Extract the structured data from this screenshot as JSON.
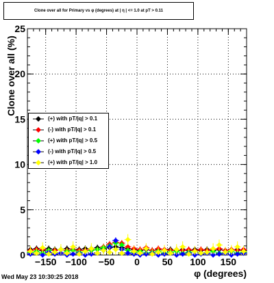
{
  "title": "Clone  over all for Primary vs φ (degrees) at | η | <= 1.0 at pT > 0.11",
  "timestamp": "Wed May 23 10:30:25 2018",
  "chart_data": {
    "type": "scatter",
    "title": "Clone  over all for Primary vs φ (degrees) at | η | <= 1.0 at pT > 0.11",
    "xlabel": "φ (degrees)",
    "ylabel": "Clone  over all (%)",
    "xlim": [
      -180,
      180
    ],
    "ylim": [
      0,
      25
    ],
    "xticks": [
      -150,
      -100,
      -50,
      0,
      50,
      100,
      150
    ],
    "xtick_labels": [
      "−150",
      "−100",
      "−50",
      "0",
      "50",
      "100",
      "150"
    ],
    "yticks": [
      0,
      5,
      10,
      15,
      20,
      25
    ],
    "grid": true,
    "legend_position": "left",
    "x": [
      -175,
      -165,
      -155,
      -145,
      -135,
      -125,
      -115,
      -105,
      -95,
      -85,
      -75,
      -65,
      -55,
      -45,
      -35,
      -25,
      -15,
      -5,
      5,
      15,
      25,
      35,
      45,
      55,
      65,
      75,
      85,
      95,
      105,
      115,
      125,
      135,
      145,
      155,
      165,
      175
    ],
    "series": [
      {
        "name": "(+) with pT/|q| > 0.1",
        "color": "#000000",
        "values": [
          0.6,
          0.7,
          0.5,
          0.7,
          0.6,
          0.6,
          0.7,
          0.6,
          0.6,
          0.7,
          0.7,
          0.8,
          0.7,
          0.8,
          0.9,
          0.8,
          0.7,
          0.6,
          0.5,
          0.6,
          0.5,
          0.6,
          0.5,
          0.6,
          0.5,
          0.6,
          0.5,
          0.6,
          0.5,
          0.6,
          0.5,
          0.6,
          0.5,
          0.5,
          0.6,
          0.5
        ]
      },
      {
        "name": "(-) with pT/|q| > 0.1",
        "color": "#ff0000",
        "values": [
          0.5,
          0.6,
          0.6,
          0.5,
          0.5,
          0.6,
          0.5,
          0.6,
          0.5,
          0.5,
          0.6,
          0.6,
          0.9,
          1.2,
          1.4,
          1.3,
          0.9,
          0.7,
          0.6,
          0.8,
          0.5,
          0.7,
          0.6,
          0.5,
          0.6,
          0.5,
          0.6,
          0.5,
          0.6,
          0.5,
          0.6,
          0.7,
          0.5,
          0.6,
          0.5,
          0.6
        ]
      },
      {
        "name": "(+) with pT/|q| > 0.5",
        "color": "#00ff00",
        "values": [
          0.3,
          0.4,
          0.2,
          0.5,
          0.3,
          0.6,
          0.4,
          0.5,
          0.3,
          0.4,
          0.5,
          0.6,
          0.8,
          1.0,
          1.3,
          1.1,
          0.5,
          0.3,
          0.4,
          0.2,
          0.3,
          0.4,
          0.2,
          0.3,
          0.4,
          0.2,
          0.3,
          0.4,
          0.2,
          0.3,
          0.4,
          0.2,
          0.3,
          0.4,
          0.2,
          0.3
        ]
      },
      {
        "name": "(-) with pT/|q| > 0.5",
        "color": "#0000ff",
        "values": [
          0.1,
          0.2,
          0.0,
          0.3,
          0.1,
          0.2,
          0.0,
          0.1,
          0.2,
          0.0,
          0.1,
          0.2,
          0.5,
          0.9,
          1.6,
          0.6,
          0.2,
          0.1,
          0.0,
          0.1,
          0.2,
          0.0,
          0.1,
          0.2,
          0.0,
          0.1,
          0.2,
          0.0,
          0.1,
          0.2,
          0.0,
          0.1,
          0.2,
          0.0,
          0.1,
          0.2
        ]
      },
      {
        "name": "(+) with pT/|q| > 1.0",
        "color": "#ffff00",
        "values": [
          0.4,
          0.2,
          0.8,
          0.1,
          0.3,
          0.6,
          0.2,
          0.9,
          0.1,
          0.4,
          0.7,
          0.2,
          0.5,
          0.3,
          0.6,
          0.2,
          1.7,
          0.4,
          0.2,
          0.7,
          0.1,
          0.3,
          0.5,
          0.2,
          0.6,
          0.9,
          0.1,
          0.4,
          0.2,
          0.3,
          0.7,
          1.1,
          0.3,
          0.5,
          0.9,
          0.4
        ]
      }
    ]
  }
}
